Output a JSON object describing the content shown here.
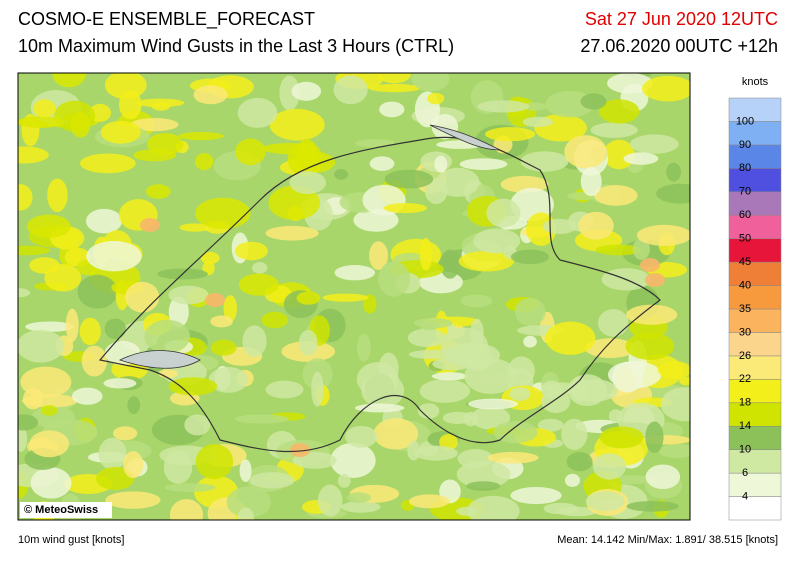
{
  "header": {
    "title": "COSMO-E ENSEMBLE_FORECAST",
    "subtitle": "10m Maximum Wind Gusts in the Last 3 Hours (CTRL)",
    "valid_time": "Sat 27 Jun 2020 12UTC",
    "run_time": "27.06.2020 00UTC +12h"
  },
  "map": {
    "credit": "© MeteoSwiss"
  },
  "colorbar": {
    "unit": "knots",
    "levels": [
      4,
      6,
      10,
      14,
      18,
      22,
      26,
      30,
      35,
      40,
      45,
      50,
      60,
      70,
      80,
      90,
      100
    ],
    "colors": [
      "#ffffff",
      "#eef7d8",
      "#cfe8a2",
      "#8cc15a",
      "#cfe400",
      "#f3ef1a",
      "#fbe978",
      "#fcd58c",
      "#fbb35e",
      "#f79a3e",
      "#ef7e36",
      "#e8153a",
      "#f0609a",
      "#a878b8",
      "#5050e0",
      "#5a86e8",
      "#80b0f4",
      "#b6d2f8"
    ]
  },
  "footer": {
    "variable": "10m wind gust [knots]",
    "stats": "Mean: 14.142 Min/Max:  1.891/ 38.515 [knots]"
  }
}
